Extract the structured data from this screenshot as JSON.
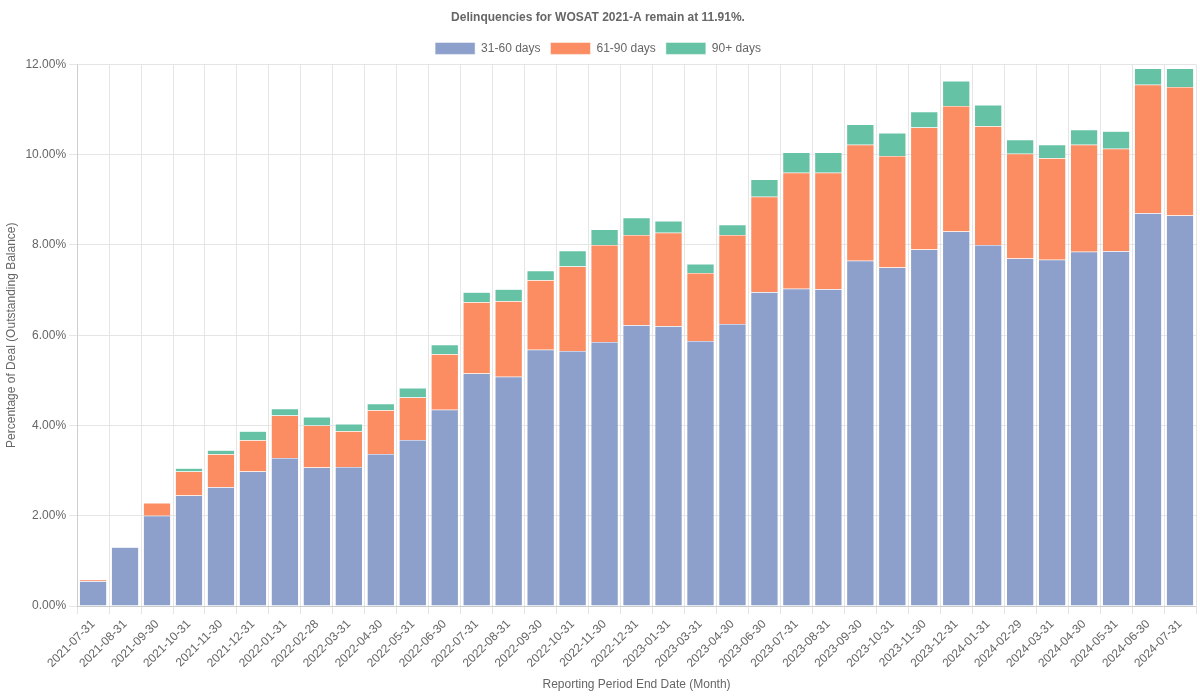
{
  "chart_data": {
    "type": "bar",
    "title": "Delinquencies for WOSAT 2021-A remain at 11.91%.",
    "x_label": "Reporting Period End Date (Month)",
    "y_label": "Percentage of Deal (Outstanding Balance)",
    "categories": [
      "2021-07-31",
      "2021-08-31",
      "2021-09-30",
      "2021-10-31",
      "2021-11-30",
      "2021-12-31",
      "2022-01-31",
      "2022-02-28",
      "2022-03-31",
      "2022-04-30",
      "2022-05-31",
      "2022-06-30",
      "2022-07-31",
      "2022-08-31",
      "2022-09-30",
      "2022-10-31",
      "2022-11-30",
      "2022-12-31",
      "2023-01-31",
      "2023-03-31",
      "2023-04-30",
      "2023-06-30",
      "2023-07-31",
      "2023-08-31",
      "2023-09-30",
      "2023-10-31",
      "2023-11-30",
      "2023-12-31",
      "2024-01-31",
      "2024-02-29",
      "2024-03-31",
      "2024-04-30",
      "2024-05-31",
      "2024-06-30",
      "2024-07-31"
    ],
    "series": [
      {
        "name": "31-60 days",
        "color": "#8da0cb",
        "values": [
          0.55,
          1.3,
          2.0,
          2.45,
          2.63,
          2.98,
          3.28,
          3.07,
          3.08,
          3.37,
          3.68,
          4.35,
          5.15,
          5.08,
          5.68,
          5.65,
          5.85,
          6.22,
          6.2,
          5.87,
          6.25,
          6.95,
          7.03,
          7.02,
          7.65,
          7.5,
          7.9,
          8.3,
          8.0,
          7.7,
          7.67,
          7.85,
          7.86,
          8.7,
          8.65
        ]
      },
      {
        "name": "61-90 days",
        "color": "#fc8d62",
        "values": [
          0.03,
          0,
          0.28,
          0.53,
          0.73,
          0.69,
          0.94,
          0.93,
          0.79,
          0.97,
          0.94,
          1.23,
          1.58,
          1.67,
          1.54,
          1.87,
          2.15,
          2.0,
          2.07,
          1.51,
          1.97,
          2.12,
          2.57,
          2.58,
          2.57,
          2.47,
          2.7,
          2.78,
          2.63,
          2.32,
          2.25,
          2.37,
          2.27,
          2.85,
          2.85
        ]
      },
      {
        "name": "90+ days",
        "color": "#66c2a5",
        "values": [
          0,
          0,
          0,
          0.07,
          0.09,
          0.2,
          0.15,
          0.19,
          0.16,
          0.14,
          0.21,
          0.21,
          0.22,
          0.27,
          0.21,
          0.35,
          0.34,
          0.38,
          0.26,
          0.2,
          0.23,
          0.38,
          0.45,
          0.45,
          0.45,
          0.51,
          0.35,
          0.55,
          0.47,
          0.31,
          0.3,
          0.33,
          0.39,
          0.36,
          0.41
        ]
      }
    ],
    "ylim": [
      0,
      12
    ],
    "yticks": [
      {
        "value": 0,
        "label": "0.00%"
      },
      {
        "value": 2,
        "label": "2.00%"
      },
      {
        "value": 4,
        "label": "4.00%"
      },
      {
        "value": 6,
        "label": "6.00%"
      },
      {
        "value": 8,
        "label": "8.00%"
      },
      {
        "value": 10,
        "label": "10.00%"
      },
      {
        "value": 12,
        "label": "12.00%"
      }
    ],
    "stacked": true,
    "grid": true,
    "legend": "top"
  }
}
